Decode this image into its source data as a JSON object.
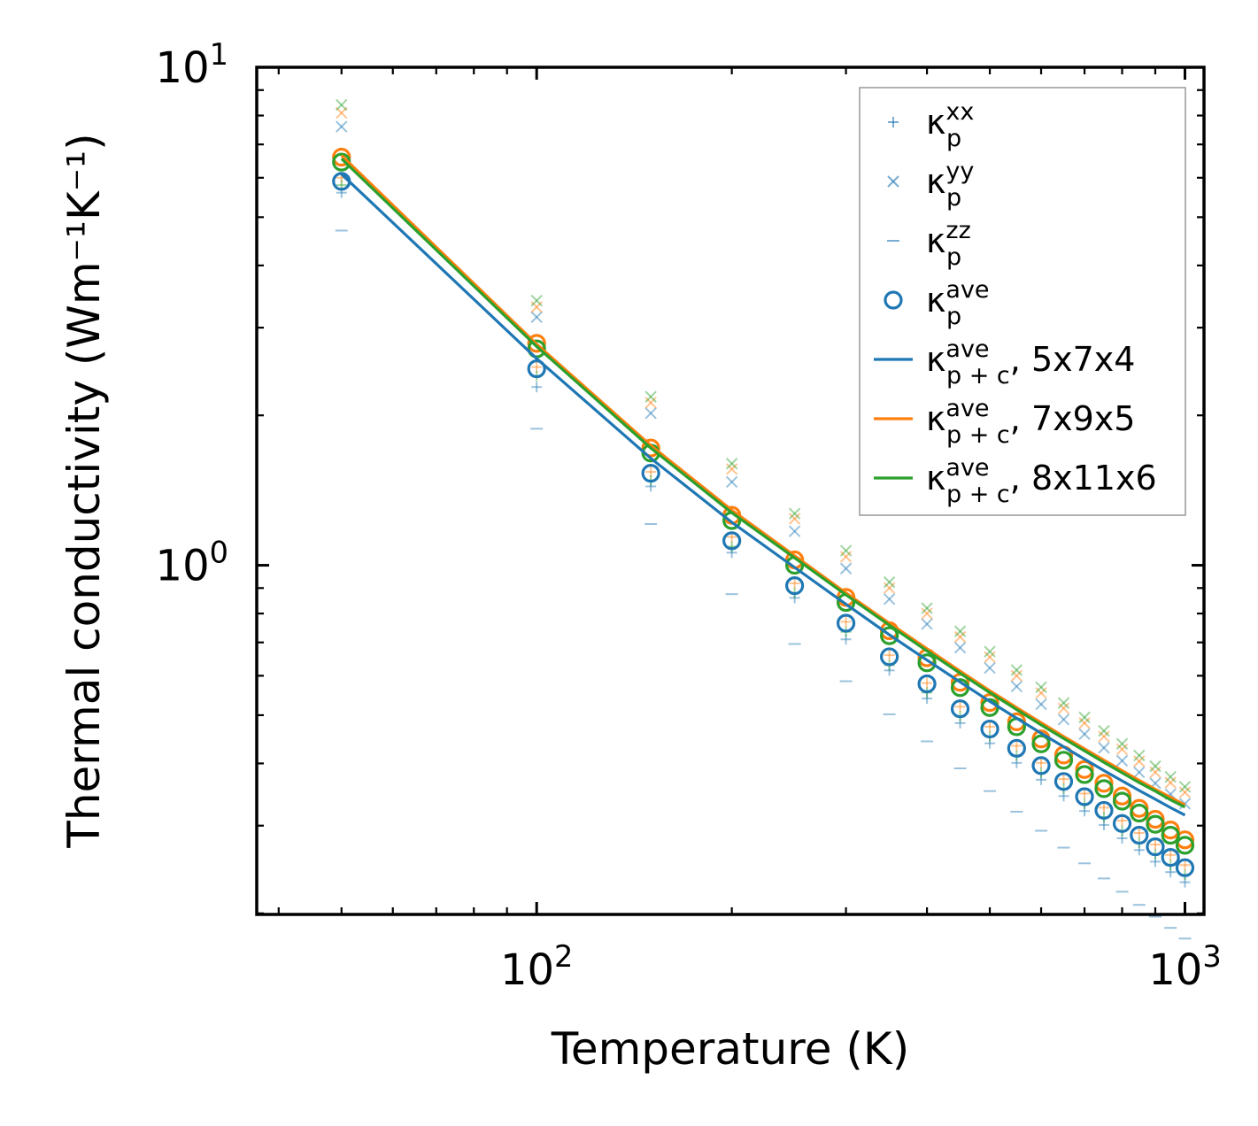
{
  "chart_data": {
    "type": "scatter",
    "scale": {
      "x": "log",
      "y": "log"
    },
    "xlabel": "Temperature (K)",
    "ylabel": "Thermal conductivity (Wm⁻¹K⁻¹)",
    "xlim": [
      37,
      1070
    ],
    "ylim": [
      0.199,
      10
    ],
    "x_major_ticks": [
      {
        "value": 100,
        "base": "10",
        "exp": "2"
      },
      {
        "value": 1000,
        "base": "10",
        "exp": "3"
      }
    ],
    "y_major_ticks": [
      {
        "value": 1,
        "base": "10",
        "exp": "0"
      },
      {
        "value": 10,
        "base": "10",
        "exp": "1"
      }
    ],
    "x": [
      50,
      100,
      150,
      200,
      250,
      300,
      350,
      400,
      450,
      500,
      550,
      600,
      650,
      700,
      750,
      800,
      850,
      900,
      950,
      1000
    ],
    "colors": {
      "c1": "#1f77b4",
      "c2": "#ff7f0e",
      "c3": "#2ca02c"
    },
    "legend": {
      "location": "upper right",
      "entries": [
        {
          "marker": "plus",
          "base": "κ",
          "sub": "p",
          "sup": "xx",
          "tail": ""
        },
        {
          "marker": "x",
          "base": "κ",
          "sub": "p",
          "sup": "yy",
          "tail": ""
        },
        {
          "marker": "dash",
          "base": "κ",
          "sub": "p",
          "sup": "zz",
          "tail": ""
        },
        {
          "marker": "circle",
          "base": "κ",
          "sub": "p",
          "sup": "ave",
          "tail": ""
        },
        {
          "marker": "line",
          "color": "#1f77b4",
          "base": "κ",
          "sub": "p + c",
          "sup": "ave",
          "tail": ", 5x7x4"
        },
        {
          "marker": "line",
          "color": "#ff7f0e",
          "base": "κ",
          "sub": "p + c",
          "sup": "ave",
          "tail": ", 7x9x5"
        },
        {
          "marker": "line",
          "color": "#2ca02c",
          "base": "κ",
          "sub": "p + c",
          "sup": "ave",
          "tail": ", 8x11x6"
        }
      ]
    },
    "series": [
      {
        "name": "κ_p^ave, 5x7x4",
        "color": "#1f77b4",
        "marker": "circle",
        "values": [
          5.9,
          2.48,
          1.53,
          1.12,
          0.91,
          0.765,
          0.655,
          0.578,
          0.515,
          0.469,
          0.429,
          0.396,
          0.368,
          0.343,
          0.322,
          0.303,
          0.287,
          0.272,
          0.259,
          0.247
        ]
      },
      {
        "name": "κ_p^ave, 7x9x5",
        "color": "#ff7f0e",
        "marker": "circle",
        "values": [
          6.6,
          2.79,
          1.72,
          1.26,
          1.025,
          0.862,
          0.739,
          0.652,
          0.582,
          0.53,
          0.485,
          0.448,
          0.416,
          0.389,
          0.365,
          0.344,
          0.325,
          0.309,
          0.294,
          0.281
        ]
      },
      {
        "name": "κ_p^ave, 8x11x6",
        "color": "#2ca02c",
        "marker": "circle",
        "values": [
          6.45,
          2.72,
          1.68,
          1.23,
          1.0,
          0.842,
          0.722,
          0.637,
          0.568,
          0.518,
          0.474,
          0.438,
          0.406,
          0.38,
          0.356,
          0.336,
          0.318,
          0.302,
          0.287,
          0.274
        ]
      },
      {
        "name": "κ_p^xx, 5x7x4",
        "color": "#1f77b4",
        "marker": "plus",
        "alpha": 0.45,
        "values": [
          5.6,
          2.28,
          1.44,
          1.06,
          0.86,
          0.71,
          0.615,
          0.54,
          0.482,
          0.439,
          0.401,
          0.371,
          0.344,
          0.321,
          0.301,
          0.283,
          0.268,
          0.254,
          0.242,
          0.231
        ]
      },
      {
        "name": "κ_p^xx, 7x9x5",
        "color": "#ff7f0e",
        "marker": "plus",
        "alpha": 0.45,
        "values": [
          6.0,
          2.5,
          1.54,
          1.14,
          0.92,
          0.77,
          0.66,
          0.58,
          0.52,
          0.474,
          0.434,
          0.401,
          0.372,
          0.348,
          0.326,
          0.307,
          0.29,
          0.275,
          0.262,
          0.25
        ]
      },
      {
        "name": "κ_p^xx, 8x11x6",
        "color": "#2ca02c",
        "marker": "plus",
        "alpha": 0.45,
        "values": [
          5.8,
          2.4,
          1.48,
          1.09,
          0.88,
          0.735,
          0.63,
          0.555,
          0.497,
          0.453,
          0.415,
          0.383,
          0.356,
          0.332,
          0.312,
          0.293,
          0.277,
          0.263,
          0.25,
          0.239
        ]
      },
      {
        "name": "κ_p^yy, 5x7x4",
        "color": "#1f77b4",
        "marker": "x",
        "alpha": 0.45,
        "values": [
          7.6,
          3.15,
          2.02,
          1.47,
          1.17,
          0.985,
          0.855,
          0.762,
          0.683,
          0.622,
          0.571,
          0.526,
          0.49,
          0.458,
          0.43,
          0.405,
          0.384,
          0.365,
          0.347,
          0.332
        ]
      },
      {
        "name": "κ_p^yy, 7x9x5",
        "color": "#ff7f0e",
        "marker": "x",
        "alpha": 0.45,
        "values": [
          8.1,
          3.3,
          2.12,
          1.56,
          1.24,
          1.04,
          0.9,
          0.8,
          0.718,
          0.654,
          0.6,
          0.554,
          0.516,
          0.482,
          0.453,
          0.427,
          0.404,
          0.384,
          0.366,
          0.35
        ]
      },
      {
        "name": "κ_p^yy, 8x11x6",
        "color": "#2ca02c",
        "marker": "x",
        "alpha": 0.45,
        "values": [
          8.4,
          3.4,
          2.18,
          1.6,
          1.27,
          1.07,
          0.925,
          0.82,
          0.737,
          0.671,
          0.616,
          0.569,
          0.529,
          0.495,
          0.465,
          0.438,
          0.415,
          0.395,
          0.376,
          0.359
        ]
      },
      {
        "name": "κ_p^zz, 5x7x4",
        "color": "#1f77b4",
        "marker": "dash",
        "alpha": 0.45,
        "values": [
          4.7,
          1.88,
          1.21,
          0.875,
          0.695,
          0.585,
          0.502,
          0.443,
          0.391,
          0.352,
          0.32,
          0.293,
          0.271,
          0.252,
          0.235,
          0.221,
          0.208,
          0.197,
          0.187,
          0.178
        ]
      }
    ],
    "lines": [
      {
        "name": "κ_p+c^ave, 5x7x4",
        "color": "#1f77b4",
        "values": [
          6.1,
          2.6,
          1.64,
          1.22,
          0.99,
          0.835,
          0.725,
          0.645,
          0.583,
          0.533,
          0.493,
          0.46,
          0.432,
          0.408,
          0.387,
          0.369,
          0.353,
          0.339,
          0.326,
          0.315
        ]
      },
      {
        "name": "κ_p+c^ave, 7x9x5",
        "color": "#ff7f0e",
        "values": [
          6.65,
          2.78,
          1.74,
          1.29,
          1.045,
          0.88,
          0.765,
          0.68,
          0.613,
          0.56,
          0.518,
          0.483,
          0.453,
          0.428,
          0.406,
          0.387,
          0.37,
          0.355,
          0.342,
          0.33
        ]
      },
      {
        "name": "κ_p+c^ave, 8x11x6",
        "color": "#2ca02c",
        "values": [
          6.55,
          2.75,
          1.72,
          1.275,
          1.035,
          0.872,
          0.758,
          0.673,
          0.607,
          0.555,
          0.513,
          0.478,
          0.449,
          0.424,
          0.402,
          0.383,
          0.366,
          0.352,
          0.338,
          0.327
        ]
      }
    ]
  }
}
